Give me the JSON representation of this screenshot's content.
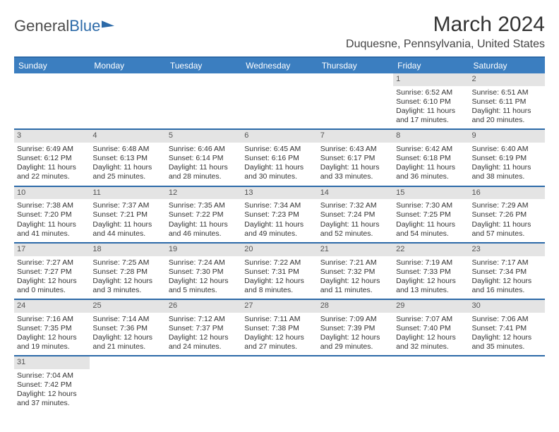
{
  "logo": {
    "text1": "General",
    "text2": "Blue"
  },
  "title": "March 2024",
  "location": "Duquesne, Pennsylvania, United States",
  "colors": {
    "header_bg": "#3b7ec0",
    "border": "#2c6aa8",
    "daynum_bg": "#e4e4e4",
    "text": "#333333"
  },
  "day_headers": [
    "Sunday",
    "Monday",
    "Tuesday",
    "Wednesday",
    "Thursday",
    "Friday",
    "Saturday"
  ],
  "weeks": [
    [
      null,
      null,
      null,
      null,
      null,
      {
        "n": "1",
        "sr": "Sunrise: 6:52 AM",
        "ss": "Sunset: 6:10 PM",
        "dl": "Daylight: 11 hours and 17 minutes."
      },
      {
        "n": "2",
        "sr": "Sunrise: 6:51 AM",
        "ss": "Sunset: 6:11 PM",
        "dl": "Daylight: 11 hours and 20 minutes."
      }
    ],
    [
      {
        "n": "3",
        "sr": "Sunrise: 6:49 AM",
        "ss": "Sunset: 6:12 PM",
        "dl": "Daylight: 11 hours and 22 minutes."
      },
      {
        "n": "4",
        "sr": "Sunrise: 6:48 AM",
        "ss": "Sunset: 6:13 PM",
        "dl": "Daylight: 11 hours and 25 minutes."
      },
      {
        "n": "5",
        "sr": "Sunrise: 6:46 AM",
        "ss": "Sunset: 6:14 PM",
        "dl": "Daylight: 11 hours and 28 minutes."
      },
      {
        "n": "6",
        "sr": "Sunrise: 6:45 AM",
        "ss": "Sunset: 6:16 PM",
        "dl": "Daylight: 11 hours and 30 minutes."
      },
      {
        "n": "7",
        "sr": "Sunrise: 6:43 AM",
        "ss": "Sunset: 6:17 PM",
        "dl": "Daylight: 11 hours and 33 minutes."
      },
      {
        "n": "8",
        "sr": "Sunrise: 6:42 AM",
        "ss": "Sunset: 6:18 PM",
        "dl": "Daylight: 11 hours and 36 minutes."
      },
      {
        "n": "9",
        "sr": "Sunrise: 6:40 AM",
        "ss": "Sunset: 6:19 PM",
        "dl": "Daylight: 11 hours and 38 minutes."
      }
    ],
    [
      {
        "n": "10",
        "sr": "Sunrise: 7:38 AM",
        "ss": "Sunset: 7:20 PM",
        "dl": "Daylight: 11 hours and 41 minutes."
      },
      {
        "n": "11",
        "sr": "Sunrise: 7:37 AM",
        "ss": "Sunset: 7:21 PM",
        "dl": "Daylight: 11 hours and 44 minutes."
      },
      {
        "n": "12",
        "sr": "Sunrise: 7:35 AM",
        "ss": "Sunset: 7:22 PM",
        "dl": "Daylight: 11 hours and 46 minutes."
      },
      {
        "n": "13",
        "sr": "Sunrise: 7:34 AM",
        "ss": "Sunset: 7:23 PM",
        "dl": "Daylight: 11 hours and 49 minutes."
      },
      {
        "n": "14",
        "sr": "Sunrise: 7:32 AM",
        "ss": "Sunset: 7:24 PM",
        "dl": "Daylight: 11 hours and 52 minutes."
      },
      {
        "n": "15",
        "sr": "Sunrise: 7:30 AM",
        "ss": "Sunset: 7:25 PM",
        "dl": "Daylight: 11 hours and 54 minutes."
      },
      {
        "n": "16",
        "sr": "Sunrise: 7:29 AM",
        "ss": "Sunset: 7:26 PM",
        "dl": "Daylight: 11 hours and 57 minutes."
      }
    ],
    [
      {
        "n": "17",
        "sr": "Sunrise: 7:27 AM",
        "ss": "Sunset: 7:27 PM",
        "dl": "Daylight: 12 hours and 0 minutes."
      },
      {
        "n": "18",
        "sr": "Sunrise: 7:25 AM",
        "ss": "Sunset: 7:28 PM",
        "dl": "Daylight: 12 hours and 3 minutes."
      },
      {
        "n": "19",
        "sr": "Sunrise: 7:24 AM",
        "ss": "Sunset: 7:30 PM",
        "dl": "Daylight: 12 hours and 5 minutes."
      },
      {
        "n": "20",
        "sr": "Sunrise: 7:22 AM",
        "ss": "Sunset: 7:31 PM",
        "dl": "Daylight: 12 hours and 8 minutes."
      },
      {
        "n": "21",
        "sr": "Sunrise: 7:21 AM",
        "ss": "Sunset: 7:32 PM",
        "dl": "Daylight: 12 hours and 11 minutes."
      },
      {
        "n": "22",
        "sr": "Sunrise: 7:19 AM",
        "ss": "Sunset: 7:33 PM",
        "dl": "Daylight: 12 hours and 13 minutes."
      },
      {
        "n": "23",
        "sr": "Sunrise: 7:17 AM",
        "ss": "Sunset: 7:34 PM",
        "dl": "Daylight: 12 hours and 16 minutes."
      }
    ],
    [
      {
        "n": "24",
        "sr": "Sunrise: 7:16 AM",
        "ss": "Sunset: 7:35 PM",
        "dl": "Daylight: 12 hours and 19 minutes."
      },
      {
        "n": "25",
        "sr": "Sunrise: 7:14 AM",
        "ss": "Sunset: 7:36 PM",
        "dl": "Daylight: 12 hours and 21 minutes."
      },
      {
        "n": "26",
        "sr": "Sunrise: 7:12 AM",
        "ss": "Sunset: 7:37 PM",
        "dl": "Daylight: 12 hours and 24 minutes."
      },
      {
        "n": "27",
        "sr": "Sunrise: 7:11 AM",
        "ss": "Sunset: 7:38 PM",
        "dl": "Daylight: 12 hours and 27 minutes."
      },
      {
        "n": "28",
        "sr": "Sunrise: 7:09 AM",
        "ss": "Sunset: 7:39 PM",
        "dl": "Daylight: 12 hours and 29 minutes."
      },
      {
        "n": "29",
        "sr": "Sunrise: 7:07 AM",
        "ss": "Sunset: 7:40 PM",
        "dl": "Daylight: 12 hours and 32 minutes."
      },
      {
        "n": "30",
        "sr": "Sunrise: 7:06 AM",
        "ss": "Sunset: 7:41 PM",
        "dl": "Daylight: 12 hours and 35 minutes."
      }
    ],
    [
      {
        "n": "31",
        "sr": "Sunrise: 7:04 AM",
        "ss": "Sunset: 7:42 PM",
        "dl": "Daylight: 12 hours and 37 minutes."
      },
      null,
      null,
      null,
      null,
      null,
      null
    ]
  ]
}
